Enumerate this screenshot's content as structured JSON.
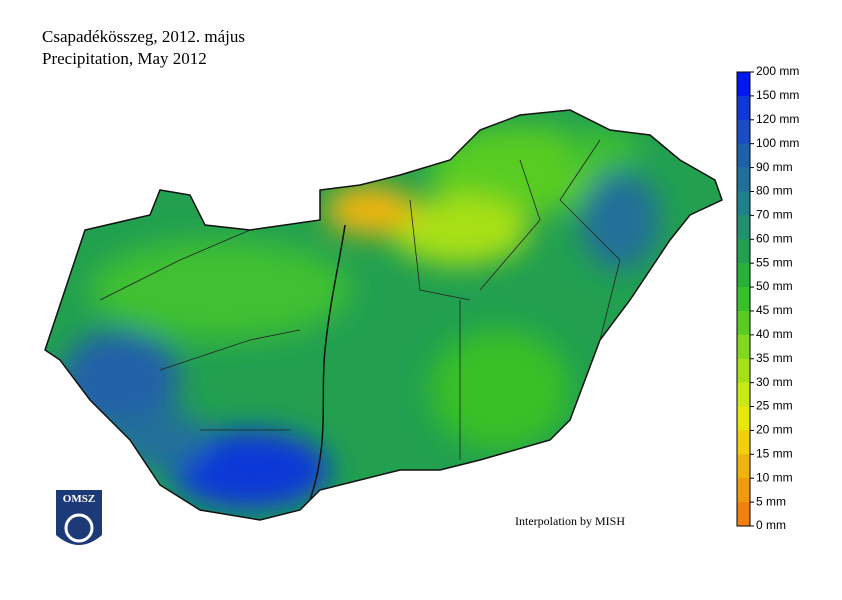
{
  "header": {
    "title": "Csapadékösszeg, 2012. május",
    "subtitle": "Precipitation, May 2012"
  },
  "legend": {
    "labels": [
      "200 mm",
      "150 mm",
      "120 mm",
      "100 mm",
      "90 mm",
      "80 mm",
      "70 mm",
      "60 mm",
      "55 mm",
      "50 mm",
      "45 mm",
      "40 mm",
      "35 mm",
      "30 mm",
      "25 mm",
      "20 mm",
      "15 mm",
      "10 mm",
      "5 mm",
      "0 mm"
    ],
    "colors": [
      "#0018f0",
      "#1038d8",
      "#1a4cc4",
      "#2060a8",
      "#20709a",
      "#20808a",
      "#209070",
      "#20a050",
      "#28b038",
      "#38c028",
      "#58cc20",
      "#80d820",
      "#a8e018",
      "#c8e818",
      "#e8e810",
      "#f0d010",
      "#f0b410",
      "#f09a10",
      "#f08010"
    ]
  },
  "credit": "Interpolation by MISH",
  "logo": "OMSZ"
}
